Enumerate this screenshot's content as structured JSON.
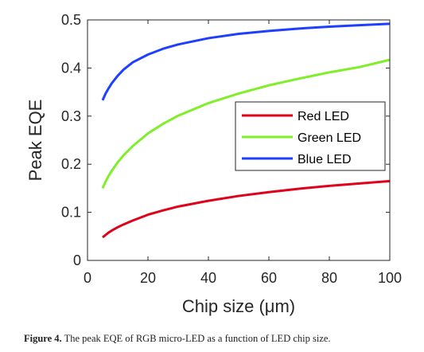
{
  "chart_data": {
    "type": "line",
    "xlabel": "Chip size (μm)",
    "ylabel": "Peak EQE",
    "xlim": [
      0,
      100
    ],
    "ylim": [
      0,
      0.5
    ],
    "xticks": [
      "0",
      "20",
      "40",
      "60",
      "80",
      "100"
    ],
    "yticks": [
      "0",
      "0.1",
      "0.2",
      "0.3",
      "0.4",
      "0.5"
    ],
    "grid": false,
    "legend_position": "center-right",
    "x": [
      5,
      6,
      7,
      8,
      10,
      12,
      15,
      20,
      25,
      30,
      40,
      50,
      60,
      70,
      80,
      90,
      100
    ],
    "series": [
      {
        "name": "Red LED",
        "color": "#e0001a",
        "values": [
          0.048,
          0.053,
          0.058,
          0.062,
          0.069,
          0.075,
          0.083,
          0.095,
          0.104,
          0.112,
          0.124,
          0.134,
          0.142,
          0.149,
          0.155,
          0.16,
          0.165
        ]
      },
      {
        "name": "Green LED",
        "color": "#7fef2a",
        "values": [
          0.15,
          0.164,
          0.176,
          0.186,
          0.204,
          0.219,
          0.238,
          0.264,
          0.284,
          0.301,
          0.327,
          0.347,
          0.364,
          0.378,
          0.391,
          0.402,
          0.417
        ]
      },
      {
        "name": "Blue LED",
        "color": "#1f3fff",
        "values": [
          0.333,
          0.347,
          0.358,
          0.368,
          0.384,
          0.397,
          0.412,
          0.428,
          0.44,
          0.449,
          0.462,
          0.471,
          0.477,
          0.482,
          0.486,
          0.489,
          0.492
        ]
      }
    ]
  },
  "caption": {
    "label": "Figure 4.",
    "text": " The peak EQE of RGB micro-LED as a function of LED chip size."
  }
}
